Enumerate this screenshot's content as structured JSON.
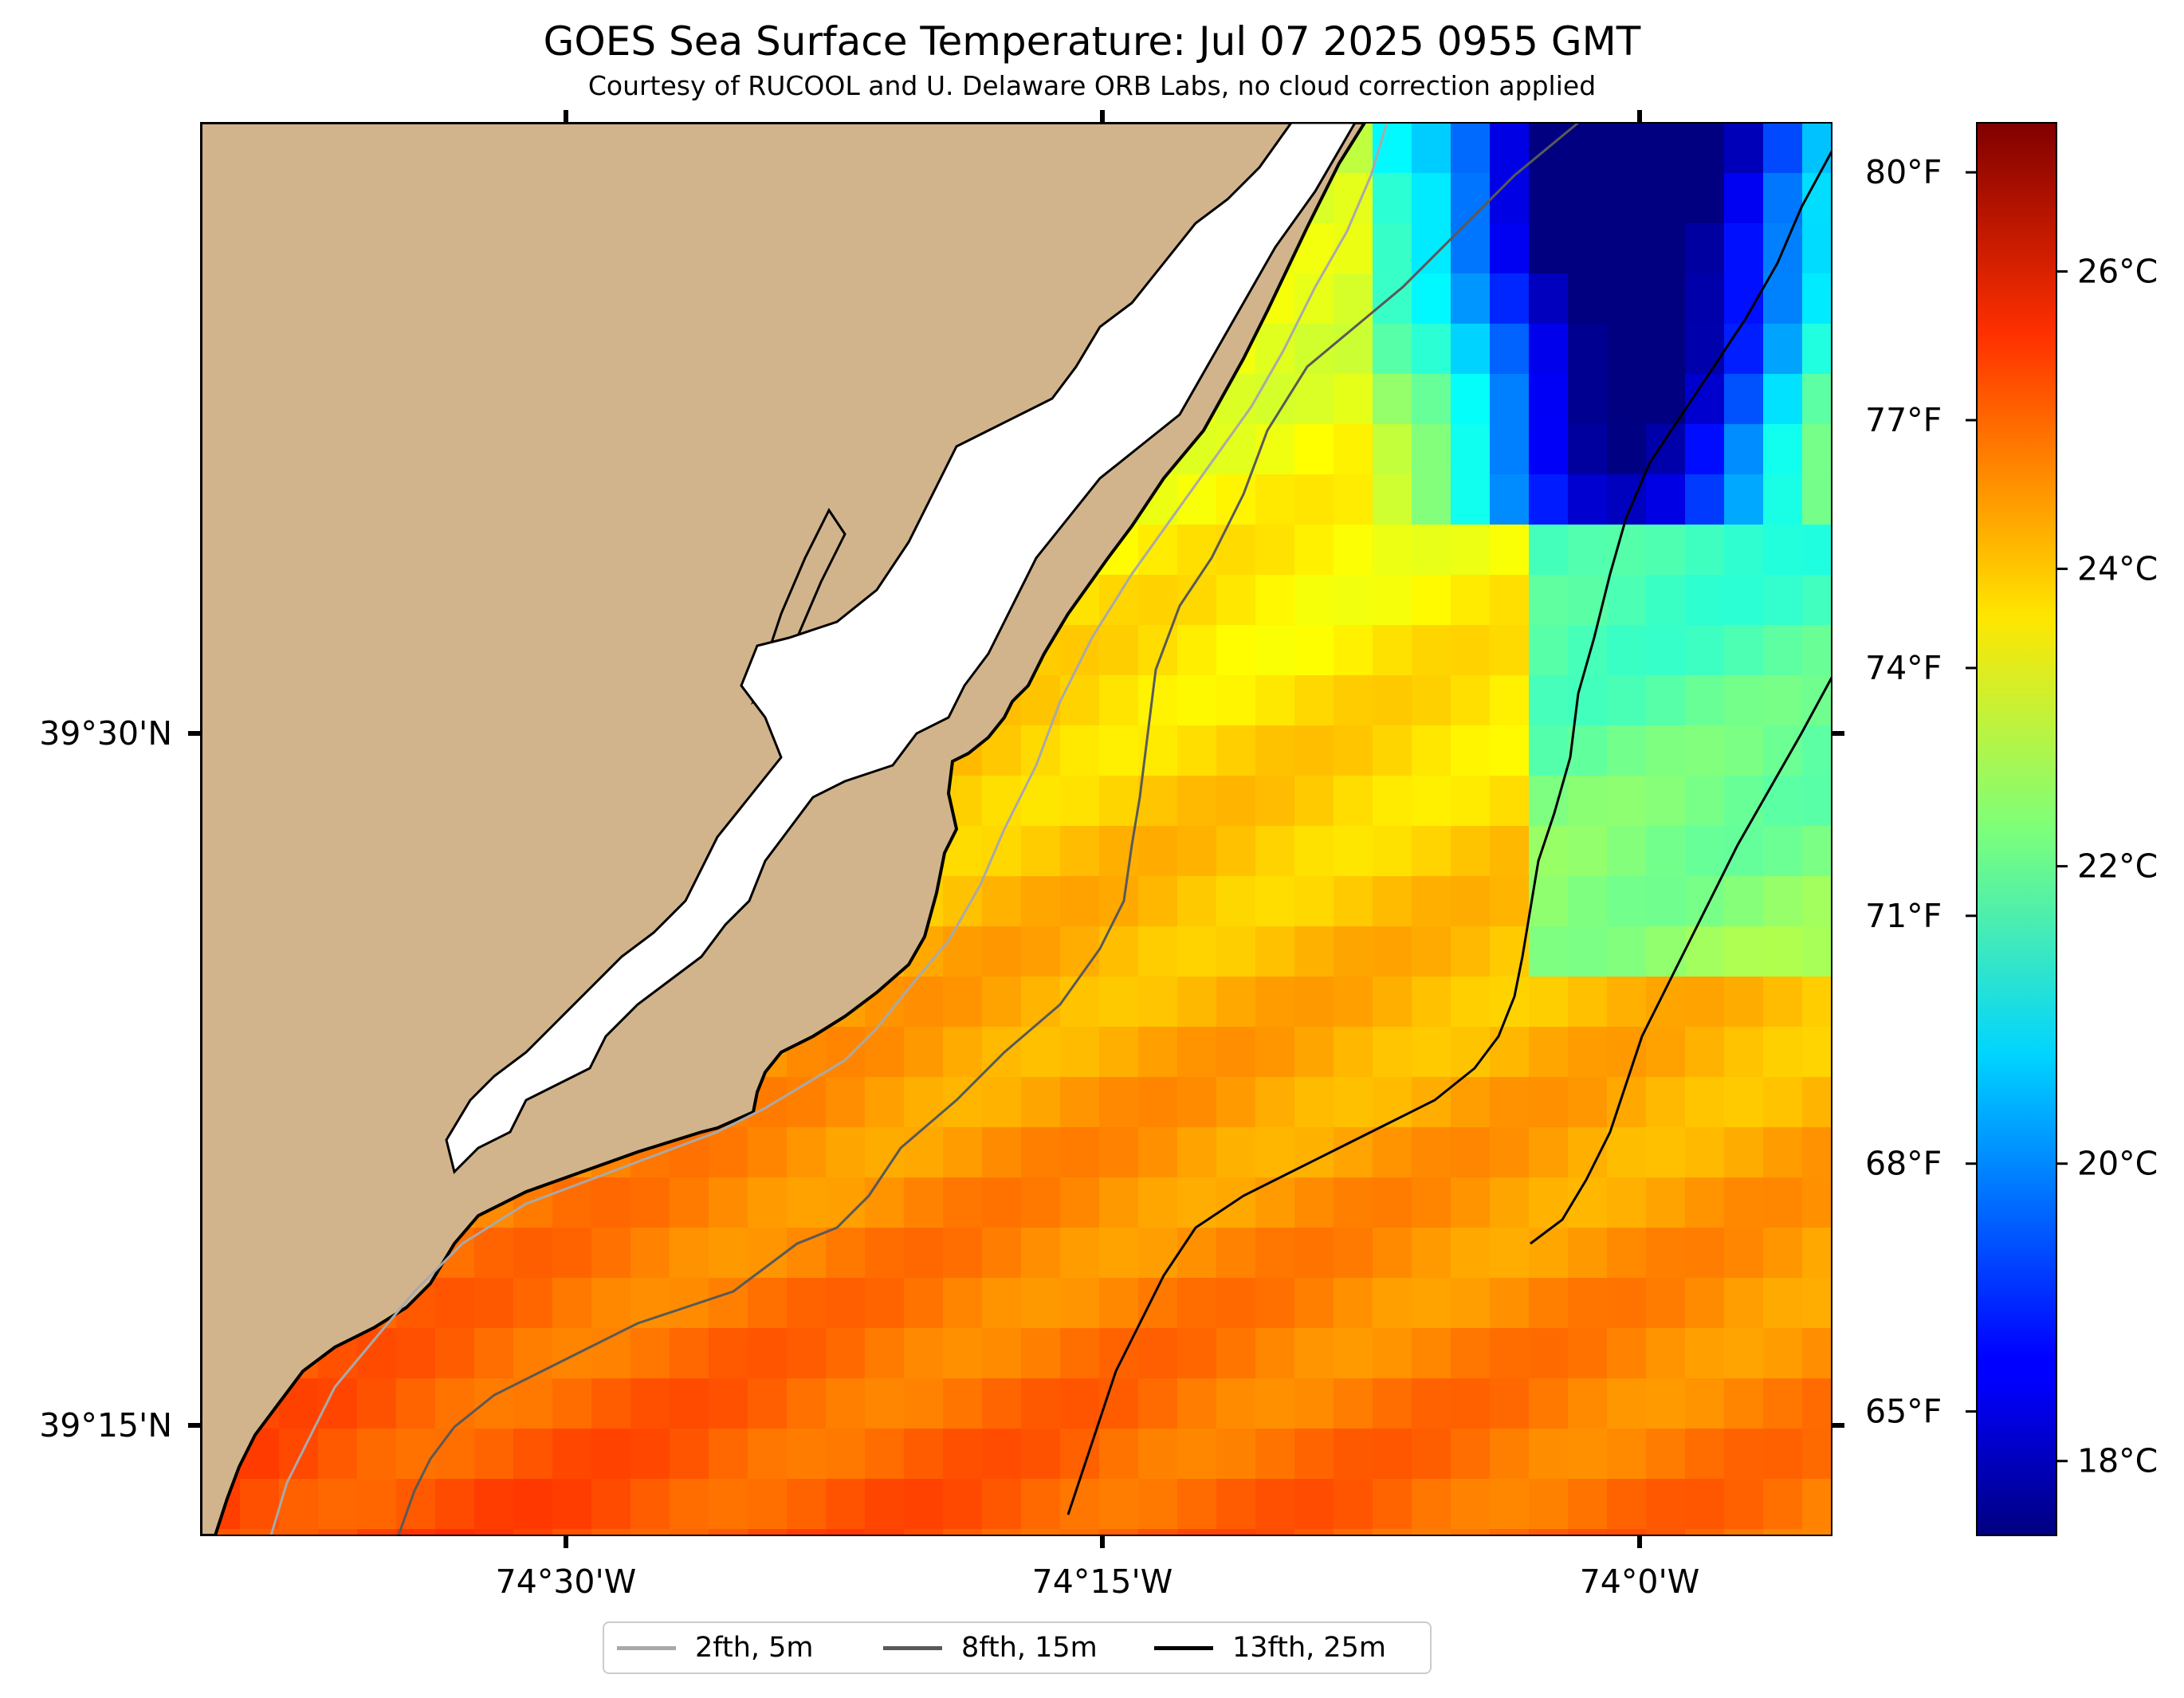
{
  "title": "GOES Sea Surface Temperature: Jul 07 2025 0955 GMT",
  "subtitle": "Courtesy of RUCOOL and U. Delaware ORB Labs, no cloud correction applied",
  "map": {
    "lon_ticks": [
      "74°30'W",
      "74°15'W",
      "74°0'W"
    ],
    "lat_ticks": [
      "39°30'N",
      "39°15'N"
    ],
    "land_color": "#d2b48c",
    "coast_color": "#000000"
  },
  "colorbar": {
    "min_c": 17.5,
    "max_c": 27.0,
    "colormap": "jet",
    "celsius_ticks": [
      {
        "value": 18,
        "label": "18°C"
      },
      {
        "value": 20,
        "label": "20°C"
      },
      {
        "value": 22,
        "label": "22°C"
      },
      {
        "value": 24,
        "label": "24°C"
      },
      {
        "value": 26,
        "label": "26°C"
      }
    ],
    "fahrenheit_ticks": [
      {
        "value": 65,
        "label": "65°F"
      },
      {
        "value": 68,
        "label": "68°F"
      },
      {
        "value": 71,
        "label": "71°F"
      },
      {
        "value": 74,
        "label": "74°F"
      },
      {
        "value": 77,
        "label": "77°F"
      },
      {
        "value": 80,
        "label": "80°F"
      }
    ]
  },
  "legend": {
    "items": [
      {
        "label": "2fth, 5m",
        "color": "#a9a9a9"
      },
      {
        "label": "8fth, 15m",
        "color": "#595959"
      },
      {
        "label": "13fth, 25m",
        "color": "#000000"
      }
    ]
  }
}
